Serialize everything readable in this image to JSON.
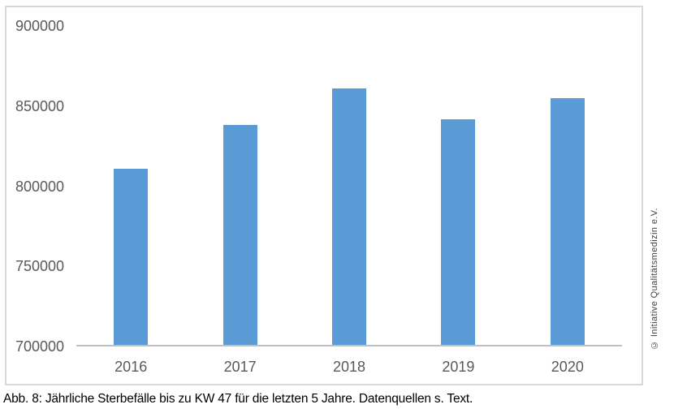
{
  "chart_data": {
    "type": "bar",
    "categories": [
      "2016",
      "2017",
      "2018",
      "2019",
      "2020"
    ],
    "values": [
      811000,
      838000,
      861000,
      842000,
      855000
    ],
    "title": "",
    "xlabel": "",
    "ylabel": "",
    "ylim": [
      700000,
      900000
    ],
    "yticks": [
      900000,
      850000,
      800000,
      750000,
      700000
    ],
    "ytick_labels": [
      "900000",
      "850000",
      "800000",
      "750000",
      "700000"
    ],
    "grid": false,
    "legend": false,
    "bar_color": "#5b9bd5"
  },
  "caption": {
    "text": "Abb. 8: Jährliche Sterbefälle bis zu KW 47 für die letzten 5 Jahre. Datenquellen s. Text."
  },
  "watermark": {
    "text": "© Initiative Qualitätsmedizin e.V."
  },
  "colors": {
    "bar": "#5b9bd5",
    "axis_line": "#bfbfbf",
    "tick_label": "#595959",
    "frame_border": "#d9d9d9",
    "caption_text": "#000000",
    "watermark_text": "#3f3f3f"
  }
}
